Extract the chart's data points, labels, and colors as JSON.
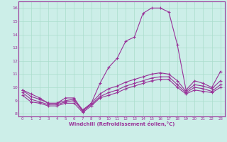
{
  "xlabel": "Windchill (Refroidissement éolien,°C)",
  "hours": [
    0,
    1,
    2,
    3,
    4,
    5,
    6,
    7,
    8,
    9,
    10,
    11,
    12,
    13,
    14,
    15,
    16,
    17,
    18,
    19,
    20,
    21,
    22,
    23
  ],
  "temp": [
    9.8,
    9.5,
    9.2,
    8.8,
    8.8,
    9.2,
    9.2,
    8.2,
    8.8,
    10.3,
    11.5,
    12.2,
    13.5,
    13.8,
    15.6,
    16.0,
    16.0,
    15.7,
    13.2,
    9.8,
    10.5,
    10.3,
    10.0,
    11.2
  ],
  "wc1": [
    9.8,
    9.3,
    9.1,
    8.8,
    8.8,
    9.0,
    9.1,
    8.3,
    8.8,
    9.5,
    9.9,
    10.1,
    10.4,
    10.6,
    10.8,
    11.0,
    11.1,
    11.0,
    10.5,
    9.7,
    10.2,
    10.1,
    9.9,
    10.5
  ],
  "wc2": [
    9.6,
    9.1,
    8.9,
    8.7,
    8.7,
    8.9,
    9.0,
    8.2,
    8.7,
    9.3,
    9.6,
    9.8,
    10.1,
    10.3,
    10.5,
    10.7,
    10.8,
    10.8,
    10.2,
    9.6,
    10.0,
    9.9,
    9.7,
    10.2
  ],
  "wc3": [
    9.4,
    8.9,
    8.8,
    8.6,
    8.6,
    8.8,
    8.8,
    8.1,
    8.6,
    9.2,
    9.4,
    9.6,
    9.9,
    10.1,
    10.3,
    10.5,
    10.6,
    10.6,
    10.0,
    9.5,
    9.8,
    9.7,
    9.6,
    10.0
  ],
  "line_color": "#993399",
  "bg_color": "#cceee8",
  "grid_color": "#aaddcc",
  "ylim": [
    7.8,
    16.5
  ],
  "yticks": [
    8,
    9,
    10,
    11,
    12,
    13,
    14,
    15,
    16
  ],
  "xlim": [
    -0.5,
    23.5
  ],
  "xticks": [
    0,
    1,
    2,
    3,
    4,
    5,
    6,
    7,
    8,
    9,
    10,
    11,
    12,
    13,
    14,
    15,
    16,
    17,
    18,
    19,
    20,
    21,
    22,
    23
  ]
}
